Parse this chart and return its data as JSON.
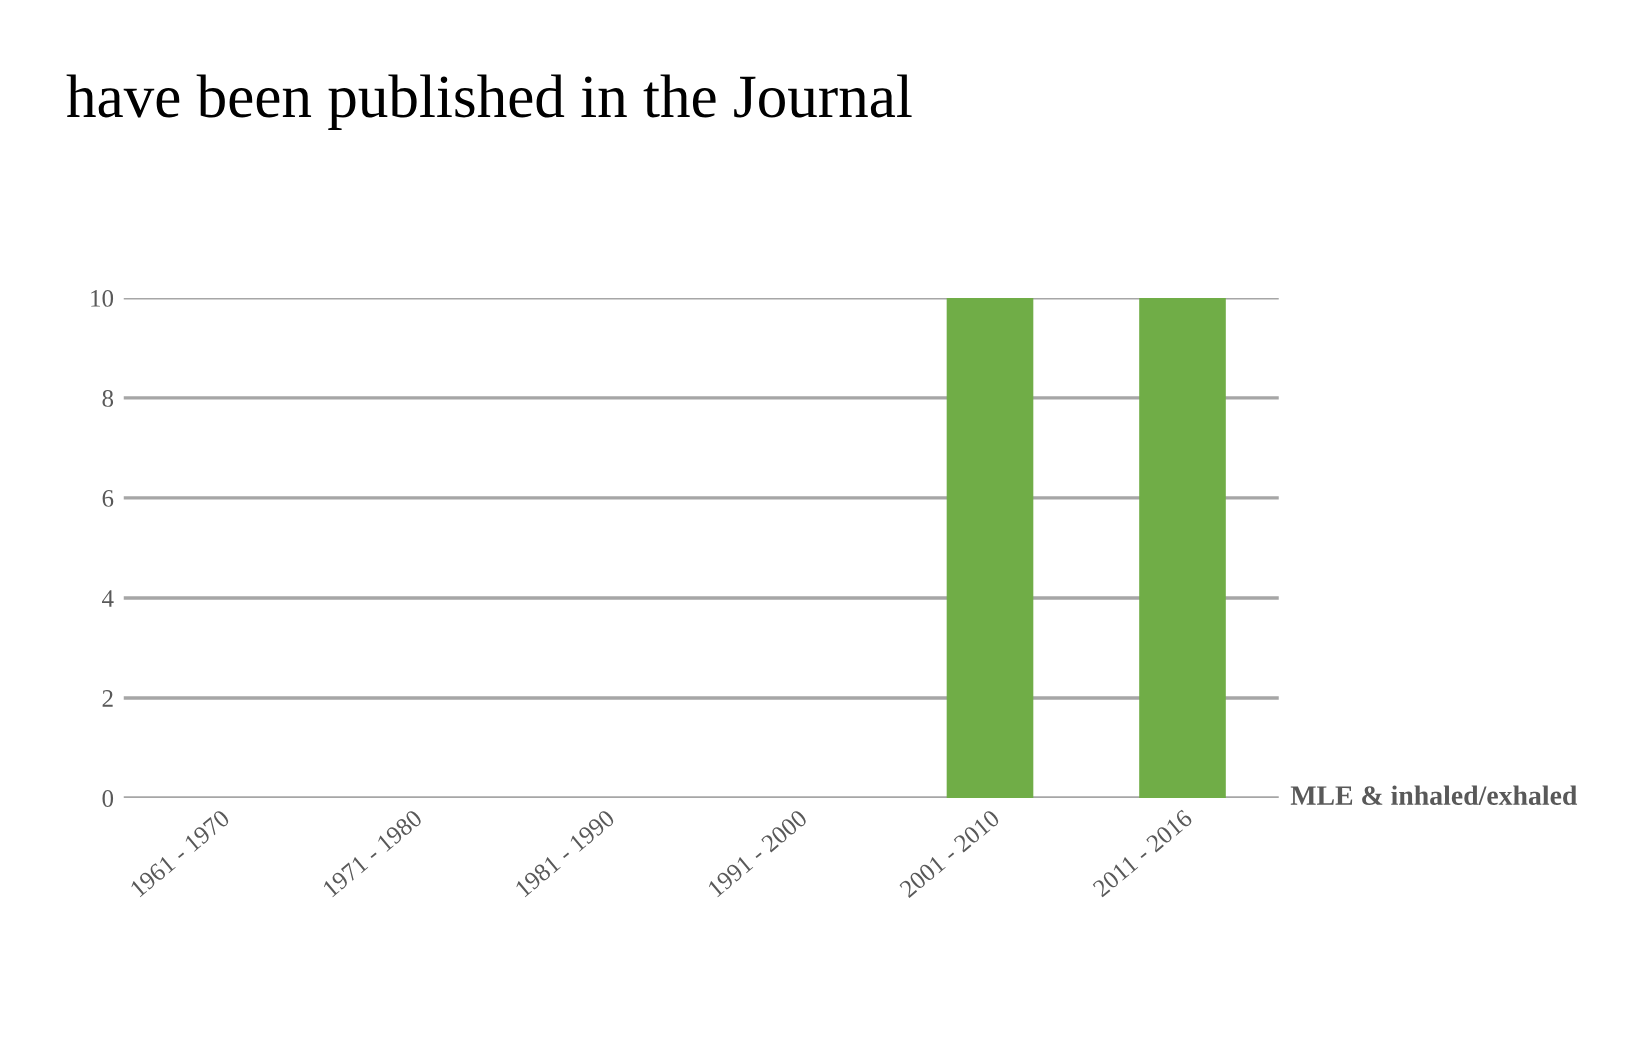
{
  "chart_data": {
    "type": "bar",
    "title": "have been published in the Journal",
    "categories": [
      "1961 - 1970",
      "1971 - 1980",
      "1981 - 1990",
      "1991 - 2000",
      "2001 - 2010",
      "2011 - 2016"
    ],
    "series": [
      {
        "name": "MLE & inhaled/exhaled",
        "color": "#70ad47",
        "values": [
          0,
          0,
          0,
          0,
          10,
          10
        ]
      }
    ],
    "ylim": [
      0,
      10
    ],
    "yticks": [
      0,
      2,
      4,
      6,
      8,
      10
    ],
    "grid": "y",
    "legend": false
  }
}
